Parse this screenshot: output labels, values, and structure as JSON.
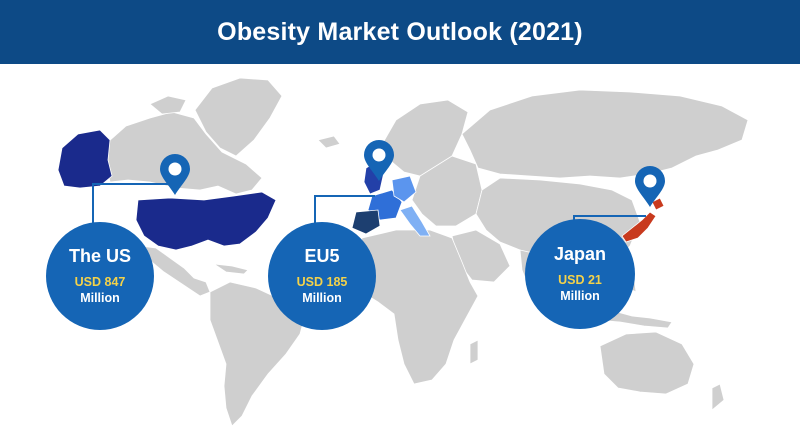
{
  "title": "Obesity Market Outlook (2021)",
  "colors": {
    "header": "#0d4a86",
    "land": "#cfcfcf",
    "us_highlight": "#1a2a8c",
    "eu_highlight": "#2f6fd8",
    "japan_highlight": "#c83a1e",
    "circle": "#1565b5",
    "value_text": "#f4d24a"
  },
  "markets": [
    {
      "name": "The US",
      "value": "USD 847",
      "unit": "Million",
      "icon": "location-pin-icon"
    },
    {
      "name": "EU5",
      "value": "USD 185",
      "unit": "Million",
      "icon": "location-pin-icon"
    },
    {
      "name": "Japan",
      "value": "USD 21",
      "unit": "Million",
      "icon": "location-pin-icon"
    }
  ]
}
